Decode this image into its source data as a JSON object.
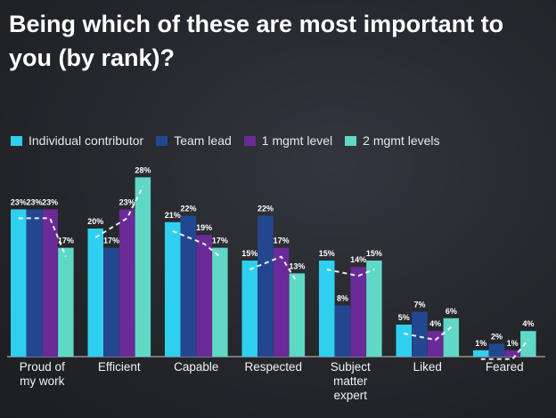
{
  "title": "Being which of these are most important to you (by rank)?",
  "colors": {
    "individual_contributor": "#2fd0ef",
    "team_lead": "#23478f",
    "one_mgmt_level": "#6a2a97",
    "two_mgmt_levels": "#5fd9c6",
    "trend_line": "#ffffff"
  },
  "legend": [
    {
      "label": "Individual contributor",
      "color": "#2fd0ef"
    },
    {
      "label": "Team lead",
      "color": "#23478f"
    },
    {
      "label": "1 mgmt level",
      "color": "#6a2a97"
    },
    {
      "label": "2 mgmt levels",
      "color": "#5fd9c6"
    }
  ],
  "chart_data": {
    "type": "bar",
    "title": "Being which of these are most important to you (by rank)?",
    "categories": [
      "Proud of my work",
      "Efficient",
      "Capable",
      "Respected",
      "Subject matter expert",
      "Liked",
      "Feared"
    ],
    "category_lines": [
      [
        "Proud of",
        "my work"
      ],
      [
        "Efficient"
      ],
      [
        "Capable"
      ],
      [
        "Respected"
      ],
      [
        "Subject",
        "matter",
        "expert"
      ],
      [
        "Liked"
      ],
      [
        "Feared"
      ]
    ],
    "series": [
      {
        "name": "Individual contributor",
        "color": "#2fd0ef",
        "values": [
          23,
          20,
          21,
          15,
          15,
          5,
          1
        ]
      },
      {
        "name": "Team lead",
        "color": "#23478f",
        "values": [
          23,
          17,
          22,
          22,
          8,
          7,
          2
        ]
      },
      {
        "name": "1 mgmt level",
        "color": "#6a2a97",
        "values": [
          23,
          23,
          19,
          17,
          14,
          4,
          1
        ]
      },
      {
        "name": "2 mgmt levels",
        "color": "#5fd9c6",
        "values": [
          17,
          28,
          17,
          13,
          15,
          6,
          4
        ]
      }
    ],
    "value_suffix": "%",
    "trend_line": "dashed white line through first, third and fourth series per category",
    "ylim": [
      0,
      30
    ],
    "grid": false,
    "legend_position": "top-left"
  }
}
